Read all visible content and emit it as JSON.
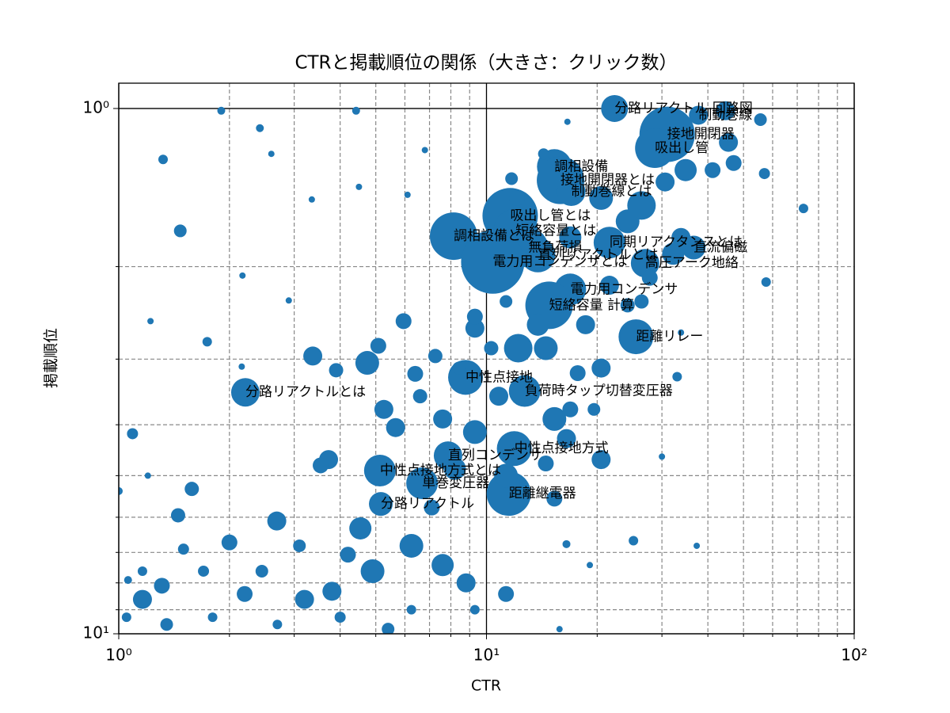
{
  "chart_data": {
    "type": "scatter",
    "title": "CTRと掲載順位の関係（大きさ：クリック数）",
    "x_label": "CTR",
    "y_label": "掲載順位",
    "xscale": "log",
    "yscale": "log",
    "y_inverted": true,
    "grid": true,
    "xlim": [
      1,
      100
    ],
    "ylim": [
      0.895,
      10
    ],
    "xticks": [
      {
        "value": 1,
        "label": "10⁰"
      },
      {
        "value": 10,
        "label": "10¹"
      },
      {
        "value": 100,
        "label": "10²"
      }
    ],
    "yticks": [
      {
        "value": 1,
        "label": "10⁰"
      },
      {
        "value": 10,
        "label": "10¹"
      }
    ],
    "xminorticks": [
      2,
      3,
      4,
      5,
      6,
      7,
      8,
      9,
      20,
      30,
      40,
      50,
      60,
      70,
      80,
      90
    ],
    "yminorticks": [
      2,
      3,
      4,
      5,
      6,
      7,
      8,
      9
    ],
    "color": "#1f77b4",
    "x": [
      22.3,
      37.7,
      31.0,
      28.7,
      15.3,
      15.9,
      17.0,
      11.6,
      12.0,
      8.14,
      21.6,
      36.6,
      13.0,
      10.4,
      27.0,
      13.8,
      16.9,
      14.8,
      25.5,
      8.77,
      2.21,
      12.7,
      11.9,
      7.86,
      5.13,
      6.68,
      11.5,
      5.16,
      1.9,
      2.42,
      4.42,
      2.6,
      1.32,
      6.8,
      4.5,
      3.35,
      6.1,
      1.47,
      2.17,
      2.9,
      1.22,
      1.74,
      2.16,
      3.37,
      3.9,
      4.74,
      5.08,
      5.95,
      5.26,
      5.66,
      3.72,
      3.54,
      1.09,
      1.58,
      1.45,
      2.69,
      2.0,
      1.31,
      1.16,
      1.35,
      2.2,
      3.2,
      3.8,
      4.9,
      4.54,
      6.25,
      7.6,
      8.8,
      11.3,
      5.4,
      4.2,
      3.1,
      2.45,
      1.7,
      1.5,
      1.16,
      1.05,
      1.8,
      2.7,
      4.0,
      6.25,
      9.3,
      7.1,
      8.2,
      9.3,
      7.6,
      6.6,
      6.4,
      7.26,
      8.4,
      9.3,
      10.3,
      10.8,
      15.3,
      16.9,
      19.6,
      16.5,
      20.5,
      14.5,
      11.3,
      15.3,
      12.2,
      14.5,
      13.8,
      18.6,
      20.5,
      17.7,
      24.2,
      26.4,
      21.6,
      27.8,
      32.2,
      33.8,
      24.2,
      26.4,
      20.5,
      30.6,
      34.8,
      41.2,
      47.0,
      45.5,
      55.6,
      44.7,
      57,
      72.8,
      57.6,
      16.6,
      14.3,
      11.7,
      12.1,
      16.9,
      9.3,
      11.3,
      30.0,
      37.3,
      25.1,
      16.5,
      19.1,
      15.8,
      33.0,
      33.8,
      1.2,
      1.06,
      1.0
    ],
    "values": [
      1.0,
      1.03,
      1.12,
      1.19,
      1.29,
      1.37,
      1.44,
      1.6,
      1.71,
      1.75,
      1.8,
      1.84,
      1.84,
      1.96,
      1.97,
      1.9,
      2.21,
      2.37,
      2.72,
      3.25,
      3.47,
      3.45,
      4.44,
      4.58,
      4.89,
      5.17,
      5.41,
      5.66,
      1.01,
      1.09,
      1.01,
      1.22,
      1.25,
      1.2,
      1.41,
      1.49,
      1.46,
      1.71,
      2.08,
      2.32,
      2.54,
      2.78,
      3.1,
      2.96,
      3.15,
      3.05,
      2.83,
      2.54,
      3.74,
      4.05,
      4.66,
      4.78,
      4.16,
      5.3,
      5.95,
      6.1,
      6.7,
      8.1,
      8.6,
      9.6,
      8.4,
      8.6,
      8.3,
      7.6,
      6.3,
      6.8,
      7.4,
      8.0,
      8.4,
      9.8,
      7.07,
      6.8,
      7.6,
      7.6,
      6.9,
      7.6,
      9.3,
      9.3,
      9.6,
      9.3,
      9.0,
      9.0,
      5.75,
      4.85,
      4.13,
      3.9,
      3.53,
      3.2,
      2.96,
      3.12,
      2.62,
      2.86,
      3.53,
      3.9,
      3.74,
      3.74,
      4.25,
      4.66,
      4.74,
      5.0,
      5.53,
      2.86,
      2.86,
      2.58,
      2.58,
      3.12,
      3.19,
      2.37,
      2.33,
      2.17,
      2.1,
      1.89,
      1.76,
      1.64,
      1.53,
      1.48,
      1.38,
      1.31,
      1.31,
      1.27,
      1.16,
      1.05,
      1.01,
      1.33,
      1.55,
      2.14,
      1.06,
      1.22,
      1.36,
      1.48,
      1.76,
      2.49,
      2.33,
      4.6,
      6.8,
      6.65,
      6.75,
      7.4,
      9.8,
      3.24,
      2.67,
      5.0,
      7.9,
      5.35
    ],
    "sizes": [
      1156,
      576,
      4900,
      2500,
      1936,
      3600,
      1296,
      4900,
      3136,
      3600,
      1600,
      900,
      2500,
      6400,
      1296,
      1936,
      1600,
      3600,
      1936,
      1936,
      1296,
      1600,
      1936,
      1296,
      1600,
      1600,
      3136,
      900,
      100,
      100,
      100,
      64,
      144,
      64,
      64,
      64,
      64,
      256,
      64,
      64,
      64,
      144,
      64,
      576,
      324,
      900,
      400,
      400,
      576,
      576,
      576,
      400,
      196,
      324,
      324,
      576,
      400,
      400,
      576,
      256,
      400,
      576,
      576,
      900,
      784,
      900,
      784,
      576,
      400,
      256,
      400,
      256,
      256,
      196,
      196,
      144,
      144,
      144,
      144,
      196,
      144,
      144,
      400,
      784,
      900,
      576,
      324,
      400,
      324,
      256,
      576,
      324,
      576,
      900,
      400,
      256,
      576,
      576,
      400,
      900,
      400,
      1296,
      900,
      784,
      576,
      576,
      400,
      324,
      324,
      576,
      400,
      784,
      576,
      900,
      1296,
      900,
      576,
      784,
      400,
      400,
      576,
      256,
      576,
      196,
      144,
      144,
      64,
      196,
      256,
      400,
      784,
      400,
      256,
      64,
      64,
      144,
      100,
      64,
      64,
      144,
      64,
      64,
      100,
      100
    ],
    "labels": [
      "分路リアクトル 回路図",
      "制動巻線",
      "接地開閉器",
      "吸出し管",
      "調相設備",
      "接地開閉器とは",
      "制動巻線とは",
      "吸出し管とは",
      "短絡容量とは",
      "調相設備とは",
      "同期リアクタンスとは",
      "直流偏磁",
      "無負荷損",
      "電力用コンデンサとは",
      "高圧アーク地絡",
      "直列リアクトルとは",
      "電力用コンデンサ",
      "短絡容量 計算",
      "距離リレー",
      "中性点接地",
      "分路リアクトルとは",
      "負荷時タップ切替変圧器",
      "中性点接地方式",
      "直列コンデンサ",
      "中性点接地方式とは",
      "単巻変圧器",
      "距離継電器",
      "分路リアクトル",
      null,
      null,
      null,
      null,
      null,
      null,
      null,
      null,
      null,
      null,
      null,
      null,
      null,
      null,
      null,
      null,
      null,
      null,
      null,
      null,
      null,
      null,
      null,
      null,
      null,
      null,
      null,
      null,
      null,
      null,
      null,
      null,
      null,
      null,
      null,
      null,
      null,
      null,
      null,
      null,
      null,
      null,
      null,
      null,
      null,
      null,
      null,
      null,
      null,
      null,
      null,
      null,
      null,
      null,
      null,
      null,
      null,
      null,
      null,
      null,
      null,
      null,
      null,
      null,
      null,
      null,
      null,
      null,
      null,
      null,
      null,
      null,
      null,
      null,
      null,
      null,
      null,
      null,
      null,
      null,
      null,
      null,
      null,
      null,
      null,
      null,
      null,
      null,
      null,
      null,
      null,
      null,
      null,
      null,
      null,
      null,
      null,
      null,
      null,
      null,
      null,
      null,
      null,
      null,
      null,
      null,
      null,
      null,
      null,
      null,
      null,
      null,
      null,
      null,
      null,
      null
    ]
  }
}
